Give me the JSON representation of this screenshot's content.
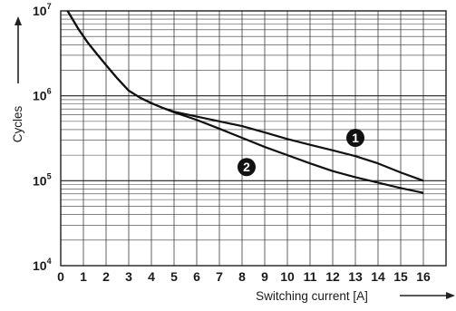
{
  "chart_data": {
    "type": "line",
    "title": "",
    "xlabel": "Switching current [A]",
    "ylabel": "Cycles",
    "xlim": [
      0,
      17
    ],
    "ylim_log10": [
      4,
      7
    ],
    "y_scale": "log",
    "grid": true,
    "x_ticks": [
      "0",
      "1",
      "2",
      "3",
      "4",
      "5",
      "6",
      "7",
      "8",
      "9",
      "10",
      "11",
      "12",
      "13",
      "14",
      "15",
      "16"
    ],
    "y_ticks": [
      {
        "base": "10",
        "exp": "4"
      },
      {
        "base": "10",
        "exp": "5"
      },
      {
        "base": "10",
        "exp": "6"
      },
      {
        "base": "10",
        "exp": "7"
      }
    ],
    "series": [
      {
        "marker": "1",
        "x": [
          0.3,
          0.8,
          1.2,
          1.6,
          2.0,
          2.5,
          3.0,
          3.5,
          4.0,
          4.5,
          5,
          6,
          7,
          8,
          9,
          10,
          11,
          12,
          13,
          14,
          15,
          16
        ],
        "y": [
          10000000,
          6000000,
          4200000,
          3100000,
          2300000,
          1600000,
          1150000,
          950000,
          820000,
          720000,
          650000,
          570000,
          500000,
          440000,
          370000,
          310000,
          265000,
          228000,
          195000,
          160000,
          125000,
          100000
        ]
      },
      {
        "marker": "2",
        "x": [
          0.3,
          0.8,
          1.2,
          1.6,
          2.0,
          2.5,
          3.0,
          3.5,
          4.0,
          4.5,
          5,
          6,
          7,
          8,
          9,
          10,
          11,
          12,
          13,
          14,
          15,
          16
        ],
        "y": [
          10000000,
          6000000,
          4200000,
          3100000,
          2300000,
          1600000,
          1150000,
          950000,
          820000,
          720000,
          640000,
          520000,
          410000,
          320000,
          250000,
          200000,
          160000,
          130000,
          110000,
          95000,
          82000,
          72000
        ]
      }
    ],
    "annotations": [
      {
        "label": "1",
        "x": 13.0,
        "y": 320000
      },
      {
        "label": "2",
        "x": 8.2,
        "y": 145000
      }
    ]
  }
}
